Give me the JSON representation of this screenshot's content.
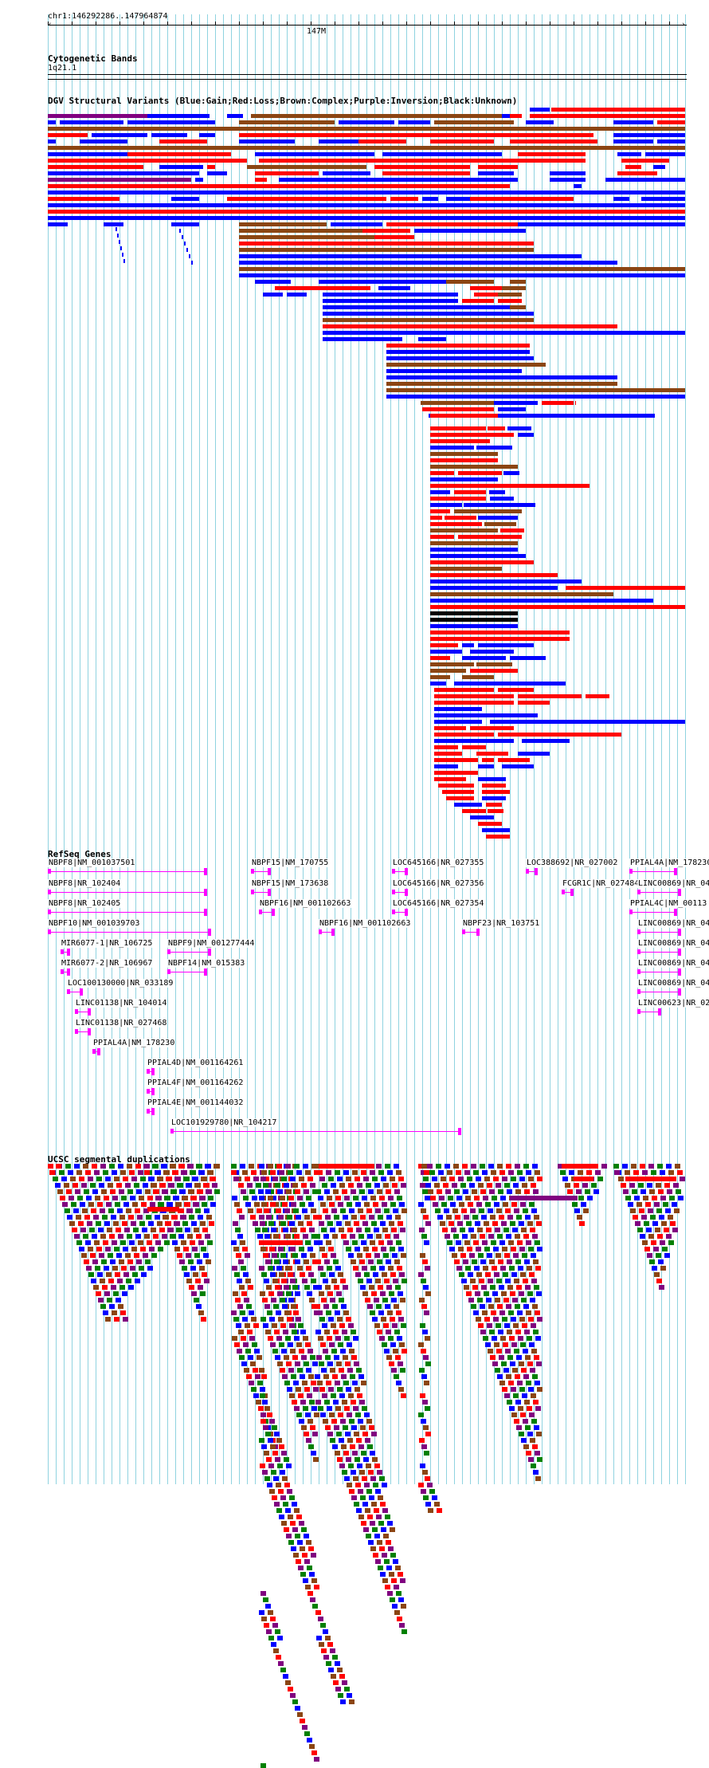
{
  "locus": "chr1:146292286..147964874",
  "ruler": {
    "tick_label": "147M"
  },
  "tracks": {
    "cytoband": {
      "title": "Cytogenetic Bands",
      "band": "1q21.1"
    },
    "dgv": {
      "title": "DGV Structural Variants (Blue:Gain;Red:Loss;Brown:Complex;Purple:Inversion;Black:Unknown)"
    },
    "refseq": {
      "title": "RefSeq Genes"
    },
    "segdup": {
      "title": "UCSC segmental duplications"
    }
  },
  "colors": {
    "gain": "#0000ff",
    "loss": "#ff0000",
    "complex": "#8b4513",
    "inversion": "#800080",
    "unknown": "#000000",
    "gene": "#ff00ff",
    "segdup_green": "#008000",
    "grid": "#8fd3e0"
  },
  "genes": [
    "NBPF8|NM_001037501",
    "NBPF8|NR_102404",
    "NBPF8|NR_102405",
    "NBPF10|NM_001039703",
    "MIR6077-1|NR_106725",
    "MIR6077-2|NR_106967",
    "LOC100130000|NR_033189",
    "LINC01138|NR_104014",
    "LINC01138|NR_027468",
    "PPIAL4A|NM_178230",
    "PPIAL4D|NM_001164261",
    "PPIAL4F|NM_001164262",
    "PPIAL4E|NM_001144032",
    "LOC101929780|NR_104217",
    "NBPF9|NM_001277444",
    "NBPF14|NM_015383",
    "NBPF15|NM_170755",
    "NBPF15|NM_173638",
    "NBPF16|NM_001102663",
    "NBPF16|NM_001102663",
    "LOC645166|NR_027355",
    "LOC645166|NR_027356",
    "LOC645166|NR_027354",
    "NBPF23|NR_103751",
    "LOC388692|NR_027002",
    "FCGR1C|NR_027484",
    "PPIAL4A|NM_178230",
    "LINC00869|NR_04",
    "PPIAL4C|NM_00113",
    "LINC00869|NR_04",
    "LINC00869|NR_04",
    "LINC00869|NR_04",
    "LINC00869|NR_04",
    "LINC00623|NR_02"
  ]
}
